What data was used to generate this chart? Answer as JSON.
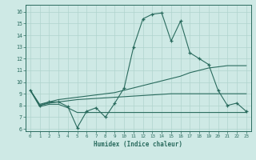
{
  "xlabel": "Humidex (Indice chaleur)",
  "bg_color": "#cee9e5",
  "grid_color": "#b0d4ce",
  "line_color": "#2a6b5e",
  "xlim": [
    -0.5,
    23.5
  ],
  "ylim": [
    5.8,
    16.6
  ],
  "xticks": [
    0,
    1,
    2,
    3,
    4,
    5,
    6,
    7,
    8,
    9,
    10,
    11,
    12,
    13,
    14,
    15,
    16,
    17,
    18,
    19,
    20,
    21,
    22,
    23
  ],
  "yticks": [
    6,
    7,
    8,
    9,
    10,
    11,
    12,
    13,
    14,
    15,
    16
  ],
  "line1_x": [
    0,
    1,
    2,
    3,
    4,
    5,
    6,
    7,
    8,
    9,
    10,
    11,
    12,
    13,
    14,
    15,
    16,
    17,
    18,
    19,
    20,
    21,
    22,
    23
  ],
  "line1_y": [
    9.3,
    8.0,
    8.3,
    8.3,
    7.9,
    6.1,
    7.5,
    7.8,
    7.0,
    8.2,
    9.5,
    13.0,
    15.4,
    15.8,
    15.9,
    13.5,
    15.2,
    12.5,
    12.0,
    11.5,
    9.3,
    8.0,
    8.2,
    7.5
  ],
  "line2_x": [
    0,
    1,
    2,
    3,
    4,
    5,
    6,
    7,
    8,
    9,
    10,
    11,
    12,
    13,
    14,
    15,
    16,
    17,
    18,
    19,
    20,
    21,
    22,
    23
  ],
  "line2_y": [
    9.3,
    8.1,
    8.3,
    8.5,
    8.6,
    8.7,
    8.8,
    8.9,
    9.0,
    9.1,
    9.3,
    9.5,
    9.7,
    9.9,
    10.1,
    10.3,
    10.5,
    10.8,
    11.0,
    11.2,
    11.3,
    11.4,
    11.4,
    11.4
  ],
  "line3_x": [
    0,
    1,
    2,
    3,
    4,
    5,
    6,
    7,
    8,
    9,
    10,
    11,
    12,
    13,
    14,
    15,
    16,
    17,
    18,
    19,
    20,
    21,
    22,
    23
  ],
  "line3_y": [
    9.3,
    8.0,
    8.2,
    8.3,
    8.4,
    8.5,
    8.55,
    8.6,
    8.65,
    8.7,
    8.75,
    8.8,
    8.85,
    8.9,
    8.95,
    9.0,
    9.0,
    9.0,
    9.0,
    9.0,
    9.0,
    9.0,
    9.0,
    9.0
  ],
  "line4_x": [
    0,
    1,
    2,
    3,
    4,
    5,
    6,
    7,
    8,
    9,
    10,
    11,
    12,
    13,
    14,
    15,
    16,
    17,
    18,
    19,
    20,
    21,
    22,
    23
  ],
  "line4_y": [
    9.3,
    7.9,
    8.1,
    8.1,
    7.8,
    7.4,
    7.4,
    7.4,
    7.4,
    7.4,
    7.4,
    7.4,
    7.4,
    7.4,
    7.4,
    7.4,
    7.4,
    7.4,
    7.4,
    7.4,
    7.4,
    7.4,
    7.4,
    7.4
  ]
}
